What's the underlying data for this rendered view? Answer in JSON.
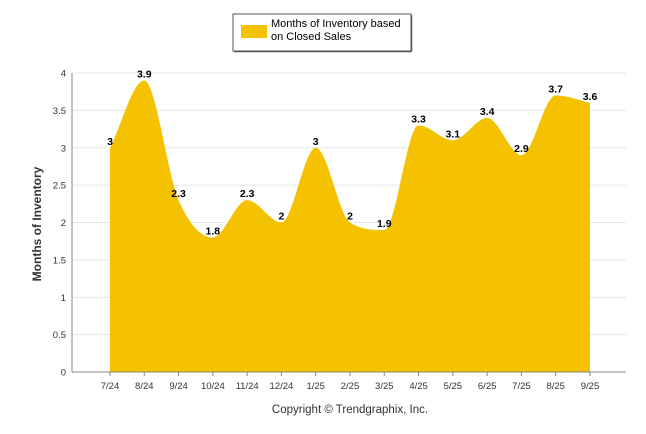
{
  "chart_data": {
    "type": "area",
    "title": "",
    "xlabel": "",
    "ylabel": "Months of Inventory",
    "ylim": [
      0,
      4
    ],
    "yticks": [
      "0",
      "0.5",
      "1",
      "1.5",
      "2",
      "2.5",
      "3",
      "3.5",
      "4"
    ],
    "categories": [
      "7/24",
      "8/24",
      "9/24",
      "10/24",
      "11/24",
      "12/24",
      "1/25",
      "2/25",
      "3/25",
      "4/25",
      "5/25",
      "6/25",
      "7/25",
      "8/25",
      "9/25"
    ],
    "series": [
      {
        "name": "Months of Inventory based on Closed Sales",
        "values": [
          3,
          3.9,
          2.3,
          1.8,
          2.3,
          2,
          3,
          2,
          1.9,
          3.3,
          3.1,
          3.4,
          2.9,
          3.7,
          3.6
        ],
        "labels": [
          "3",
          "3.9",
          "2.3",
          "1.8",
          "2.3",
          "2",
          "3",
          "2",
          "1.9",
          "3.3",
          "3.1",
          "3.4",
          "2.9",
          "3.7",
          "3.6"
        ],
        "color": "#f5c201"
      }
    ],
    "legend": {
      "lines": [
        "Months of Inventory based",
        "on Closed Sales"
      ],
      "position": "top-center"
    },
    "grid": true
  },
  "footer": {
    "copyright": "Copyright © Trendgraphix, Inc."
  },
  "colors": {
    "area": "#f5c201",
    "grid": "#e6e6e6",
    "axis": "#888888"
  }
}
